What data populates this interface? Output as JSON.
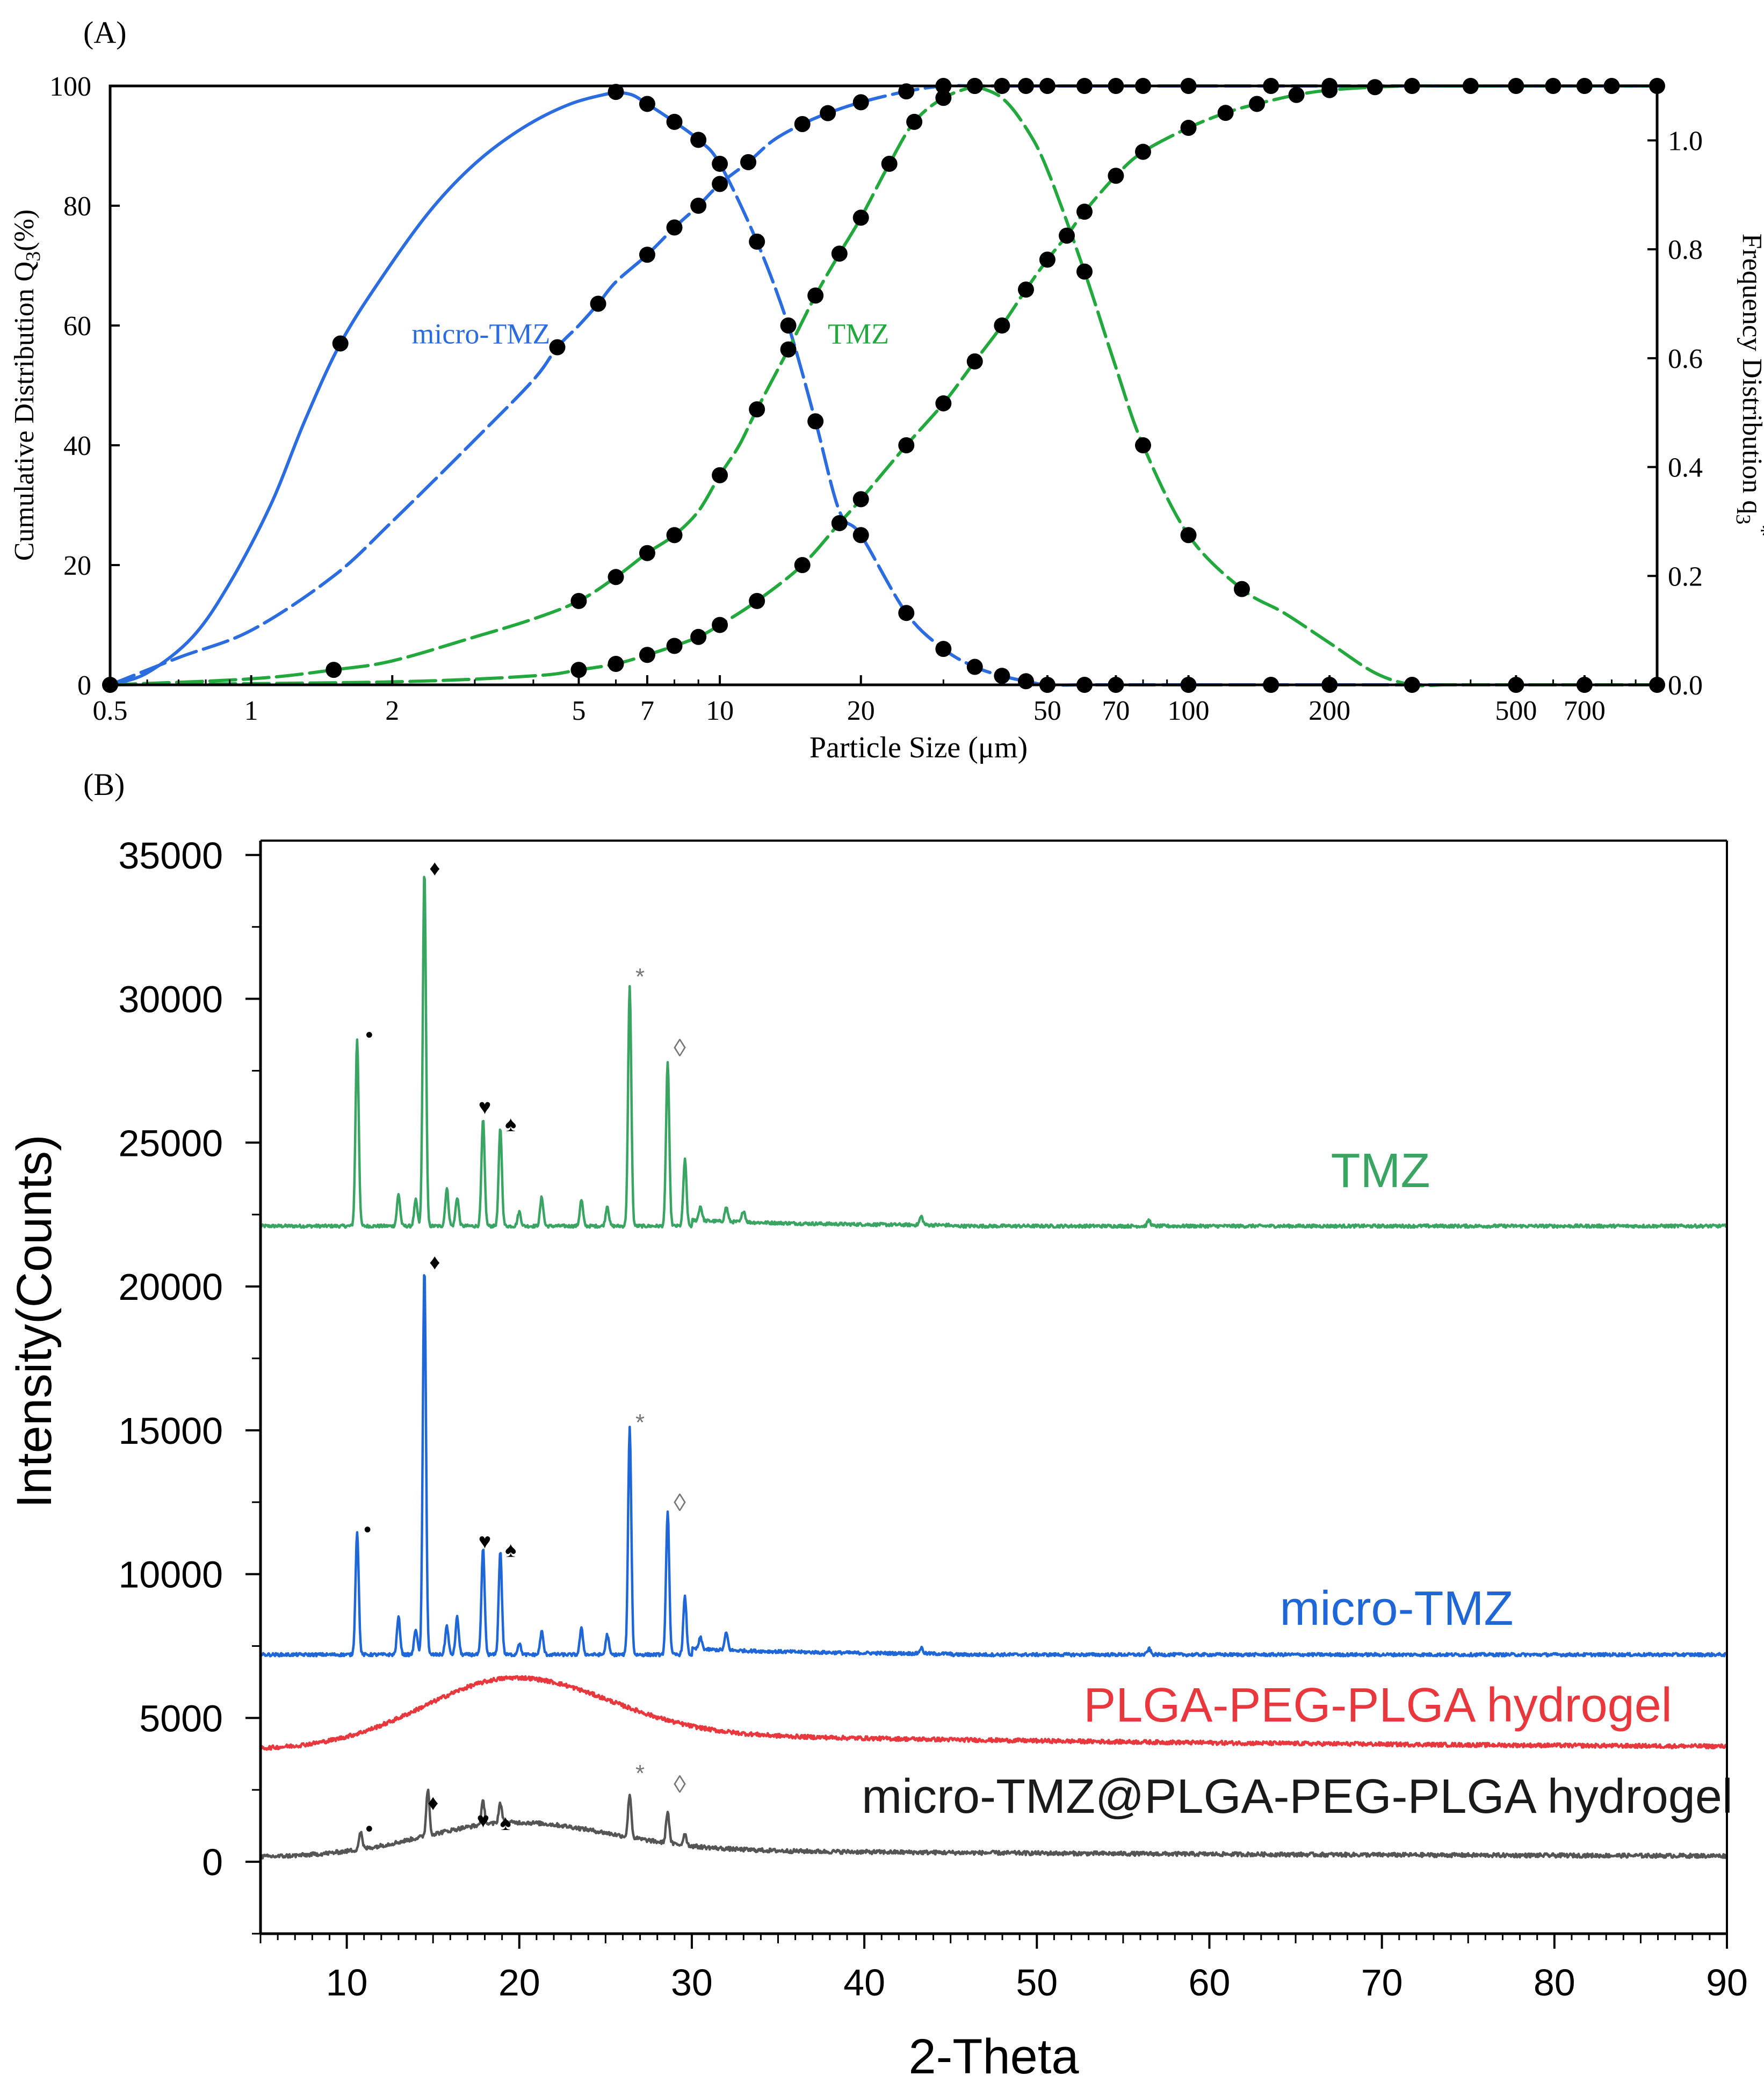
{
  "colors": {
    "blue": "#2b6de0",
    "green": "#22a83c",
    "xrd_green": "#3aa463",
    "xrd_blue": "#1f67d6",
    "red": "#e8383d",
    "gray": "#555555",
    "black": "#000000"
  },
  "chart_data": [
    {
      "panel": "(A)",
      "type": "line",
      "xscale": "log",
      "xlabel": "Particle Size (μm)",
      "ylabel_left": "Cumulative Distribution Q",
      "ylabel_left_sub": "3",
      "ylabel_left_suffix": "(%)",
      "ylabel_right": "Frequency Distribution q",
      "ylabel_right_sub": "3",
      "ylabel_right_sup": "*",
      "xlim": [
        0.5,
        1000
      ],
      "ylim_left": [
        0,
        100
      ],
      "ylim_right": [
        0,
        1.1
      ],
      "xticks": [
        0.5,
        1,
        2,
        5,
        7,
        10,
        20,
        50,
        70,
        100,
        200,
        500,
        700
      ],
      "xtick_labels": [
        "0.5",
        "1",
        "2",
        "5",
        "7",
        "10",
        "20",
        "50",
        "70",
        "100",
        "200",
        "500",
        "700"
      ],
      "yticks_left": [
        0,
        20,
        40,
        60,
        80,
        100
      ],
      "ytick_labels_left": [
        "0",
        "20",
        "40",
        "60",
        "80",
        "100"
      ],
      "yticks_right": [
        0.0,
        0.2,
        0.4,
        0.6,
        0.8,
        1.0
      ],
      "ytick_labels_right": [
        "0.0",
        "0.2",
        "0.4",
        "0.6",
        "0.8",
        "1.0"
      ],
      "annotations": [
        {
          "text": "micro-TMZ",
          "color": "blue",
          "x": 2.2,
          "y": 57
        },
        {
          "text": "TMZ",
          "color": "green",
          "x": 17,
          "y": 57
        }
      ],
      "series": [
        {
          "name": "micro-TMZ cumulative",
          "color": "blue",
          "axis": "left",
          "x": [
            0.5,
            0.6,
            0.75,
            0.9,
            1.1,
            1.3,
            1.55,
            1.9,
            2.4,
            3.0,
            3.8,
            4.8,
            6.0
          ],
          "y": [
            0,
            2,
            8,
            17,
            30,
            44,
            57,
            68,
            79,
            87,
            93,
            97,
            99
          ],
          "marked_x": [
            1.55
          ]
        },
        {
          "name": "micro-TMZ frequency",
          "color": "blue",
          "axis": "right",
          "x": [
            0.5,
            0.7,
            1.0,
            1.5,
            2.0,
            3.0,
            4.0,
            4.5,
            5.0,
            5.5,
            6.0,
            7.0,
            8.0,
            9.0,
            10.0,
            11.5,
            13.0,
            15.0,
            17.0,
            20.0,
            25.0,
            30.0,
            35.0,
            40.0,
            45.0,
            50.0,
            60.0,
            70.0,
            80.0,
            100.0,
            150.0,
            200.0,
            300.0,
            400.0,
            500.0,
            600.0,
            700.0,
            800.0,
            1000.0
          ],
          "y": [
            0,
            0.05,
            0.1,
            0.2,
            0.3,
            0.45,
            0.56,
            0.62,
            0.66,
            0.7,
            0.74,
            0.79,
            0.84,
            0.88,
            0.92,
            0.96,
            1.0,
            1.03,
            1.05,
            1.07,
            1.09,
            1.1,
            1.1,
            1.1,
            1.1,
            1.1,
            1.1,
            1.1,
            1.1,
            1.1,
            1.1,
            1.1,
            1.1,
            1.1,
            1.1,
            1.1,
            1.1,
            1.1,
            1.1
          ],
          "marked_x": [
            4.5,
            5.5,
            7.0,
            8.0,
            9.0,
            10.0,
            11.5,
            15.0,
            17.0,
            20.0,
            25.0,
            30.0,
            35.0,
            40.0,
            45.0,
            50.0,
            60.0,
            70.0,
            80.0,
            100.0,
            150.0,
            200.0,
            300.0,
            400.0,
            500.0,
            600.0,
            700.0,
            800.0,
            1000.0
          ]
        },
        {
          "name": "micro-TMZ frequency (right peak curve)",
          "color": "blue",
          "axis": "left",
          "x": [
            6.0,
            6.5,
            7.0,
            8.0,
            9.0,
            10.0,
            12.0,
            14.0,
            16.0,
            18.0,
            20.0,
            25.0,
            30.0,
            35.0,
            40.0,
            45.0,
            50.0,
            60.0,
            70.0,
            100.0,
            150.0,
            200.0,
            300.0,
            500.0,
            700.0,
            1000.0
          ],
          "y": [
            99,
            98.5,
            97,
            94,
            91,
            87,
            74,
            60,
            44,
            29,
            25,
            12,
            6,
            3,
            1.5,
            0.6,
            0,
            0,
            0,
            0,
            0,
            0,
            0,
            0,
            0,
            0
          ],
          "marked_x": [
            6.0,
            7.0,
            8.0,
            9.0,
            10.0,
            12.0,
            14.0,
            16.0,
            20.0,
            25.0,
            30.0,
            35.0,
            40.0,
            45.0,
            50.0,
            60.0,
            70.0,
            100.0,
            150.0,
            200.0,
            300.0,
            500.0,
            700.0,
            1000.0
          ]
        },
        {
          "name": "TMZ cumulative",
          "color": "green",
          "axis": "left",
          "x": [
            0.5,
            1.0,
            1.5,
            2.0,
            3.0,
            4.0,
            5.0,
            6.0,
            7.0,
            8.0,
            9.0,
            10.0,
            11.0,
            12.0,
            14.0,
            16.0,
            18.0,
            20.0,
            23.0,
            26.0,
            30.0,
            35.0
          ],
          "y": [
            0,
            1,
            2.5,
            4,
            8,
            11,
            14,
            18,
            22,
            25,
            29,
            35,
            40,
            46,
            56,
            65,
            72,
            78,
            87,
            94,
            98,
            100
          ],
          "marked_x": [
            1.5,
            5.0,
            6.0,
            7.0,
            8.0,
            10.0,
            12.0,
            14.0,
            16.0,
            18.0,
            20.0,
            23.0,
            26.0,
            30.0,
            35.0
          ]
        },
        {
          "name": "TMZ frequency",
          "color": "green",
          "axis": "left",
          "x": [
            0.5,
            2.0,
            4.0,
            5.0,
            6.0,
            7.0,
            8.0,
            9.0,
            10.0,
            12.0,
            15.0,
            18.0,
            20.0,
            25.0,
            30.0,
            35.0,
            40.0,
            45.0,
            50.0,
            55.0,
            60.0,
            70.0,
            80.0,
            100.0,
            120.0,
            140.0,
            170.0,
            200.0,
            250.0,
            300.0,
            350.0,
            400.0,
            500.0,
            600.0,
            700.0,
            800.0,
            1000.0
          ],
          "y": [
            0,
            0.5,
            1.5,
            2.5,
            3.5,
            5,
            6.5,
            8,
            10,
            14,
            20,
            27,
            31,
            40,
            47,
            54,
            60,
            66,
            71,
            75,
            79,
            85,
            89,
            93,
            95.5,
            97,
            98.5,
            99.3,
            99.8,
            100,
            100,
            100,
            100,
            100,
            100,
            100,
            100
          ],
          "marked_x": [
            5.0,
            6.0,
            7.0,
            8.0,
            9.0,
            10.0,
            12.0,
            15.0,
            18.0,
            20.0,
            25.0,
            30.0,
            35.0,
            40.0,
            45.0,
            50.0,
            55.0,
            60.0,
            70.0,
            80.0,
            100.0,
            120.0,
            140.0,
            170.0,
            200.0,
            250.0
          ]
        },
        {
          "name": "TMZ frequency peak",
          "color": "green",
          "axis": "left",
          "x": [
            35.0,
            40.0,
            45.0,
            50.0,
            60.0,
            70.0,
            80.0,
            100.0,
            130.0,
            160.0,
            200.0,
            250.0,
            300.0,
            350.0,
            400.0,
            500.0,
            700.0,
            1000.0
          ],
          "y": [
            100,
            98,
            93,
            86,
            69,
            53,
            40,
            25,
            16,
            12,
            7,
            2,
            0,
            0,
            0,
            0,
            0,
            0
          ],
          "marked_x": [
            60.0,
            80.0,
            100.0,
            130.0
          ]
        }
      ]
    },
    {
      "panel": "(B)",
      "type": "line",
      "xlabel": "2-Theta",
      "ylabel": "Intensity(Counts)",
      "xlim": [
        5,
        90
      ],
      "ylim": [
        -2500,
        35500
      ],
      "xticks": [
        10,
        20,
        30,
        40,
        50,
        60,
        70,
        80,
        90
      ],
      "xtick_labels": [
        "10",
        "20",
        "30",
        "40",
        "50",
        "60",
        "70",
        "80",
        "90"
      ],
      "yticks": [
        0,
        5000,
        10000,
        15000,
        20000,
        25000,
        30000,
        35000
      ],
      "ytick_labels": [
        "0",
        "5000",
        "10000",
        "15000",
        "20000",
        "25000",
        "30000",
        "35000"
      ],
      "series": [
        {
          "name": "TMZ",
          "color": "xrd_green",
          "baseline": 22100,
          "label": "TMZ",
          "peaks": [
            [
              10.6,
              6500
            ],
            [
              13.0,
              1100
            ],
            [
              14.0,
              900
            ],
            [
              14.5,
              12400
            ],
            [
              15.8,
              1300
            ],
            [
              16.4,
              1000
            ],
            [
              17.9,
              3700
            ],
            [
              18.9,
              3400
            ],
            [
              20.0,
              500
            ],
            [
              21.3,
              1000
            ],
            [
              23.6,
              900
            ],
            [
              25.1,
              700
            ],
            [
              26.4,
              8300
            ],
            [
              28.6,
              5700
            ],
            [
              29.6,
              2300
            ],
            [
              30.5,
              500
            ],
            [
              32.0,
              500
            ],
            [
              33.0,
              400
            ],
            [
              43.3,
              300
            ],
            [
              56.5,
              200
            ]
          ],
          "bump": 0
        },
        {
          "name": "micro-TMZ",
          "color": "xrd_blue",
          "baseline": 7200,
          "label": "micro-TMZ",
          "peaks": [
            [
              10.6,
              4300
            ],
            [
              13.0,
              1300
            ],
            [
              14.0,
              900
            ],
            [
              14.5,
              13500
            ],
            [
              15.8,
              1000
            ],
            [
              16.4,
              1300
            ],
            [
              17.9,
              3700
            ],
            [
              18.9,
              3600
            ],
            [
              20.0,
              400
            ],
            [
              21.3,
              800
            ],
            [
              23.6,
              900
            ],
            [
              25.1,
              700
            ],
            [
              26.4,
              7900
            ],
            [
              28.6,
              5000
            ],
            [
              29.6,
              2000
            ],
            [
              30.5,
              400
            ],
            [
              32.0,
              600
            ],
            [
              43.3,
              200
            ],
            [
              56.5,
              200
            ]
          ],
          "bump": 0
        },
        {
          "name": "PLGA-PEG-PLGA hydrogel",
          "color": "red",
          "baseline": 3900,
          "label": "PLGA-PEG-PLGA hydrogel",
          "peaks": [],
          "bump": 1850
        },
        {
          "name": "micro-TMZ@PLGA-PEG-PLGA hydrogel",
          "color": "gray",
          "baseline": 150,
          "label": "micro-TMZ@PLGA-PEG-PLGA hydrogel",
          "peaks": [
            [
              10.8,
              600
            ],
            [
              14.7,
              1600
            ],
            [
              17.9,
              800
            ],
            [
              18.9,
              700
            ],
            [
              26.4,
              1500
            ],
            [
              28.6,
              1100
            ],
            [
              29.6,
              400
            ]
          ],
          "bump": 900
        }
      ],
      "markers": [
        {
          "symbol": "•",
          "series": "TMZ",
          "x": 11.3,
          "y": 28500
        },
        {
          "symbol": "♦",
          "series": "TMZ",
          "x": 15.1,
          "y": 34300
        },
        {
          "symbol": "♥",
          "series": "TMZ",
          "x": 18.0,
          "y": 26000
        },
        {
          "symbol": "♠",
          "series": "TMZ",
          "x": 19.5,
          "y": 25400
        },
        {
          "symbol": "*",
          "series": "TMZ",
          "x": 27.0,
          "y": 30500
        },
        {
          "symbol": "◊",
          "series": "TMZ",
          "x": 29.3,
          "y": 28000
        },
        {
          "symbol": "•",
          "series": "micro-TMZ",
          "x": 11.2,
          "y": 11300
        },
        {
          "symbol": "♦",
          "series": "micro-TMZ",
          "x": 15.1,
          "y": 20600
        },
        {
          "symbol": "♥",
          "series": "micro-TMZ",
          "x": 18.0,
          "y": 10900
        },
        {
          "symbol": "♠",
          "series": "micro-TMZ",
          "x": 19.5,
          "y": 10600
        },
        {
          "symbol": "*",
          "series": "micro-TMZ",
          "x": 27.0,
          "y": 15000
        },
        {
          "symbol": "◊",
          "series": "micro-TMZ",
          "x": 29.3,
          "y": 12200
        },
        {
          "symbol": "•",
          "series": "micro-TMZ@PLGA-PEG-PLGA hydrogel",
          "x": 11.3,
          "y": 900
        },
        {
          "symbol": "♦",
          "series": "micro-TMZ@PLGA-PEG-PLGA hydrogel",
          "x": 15.0,
          "y": 1800
        },
        {
          "symbol": "♥",
          "series": "micro-TMZ@PLGA-PEG-PLGA hydrogel",
          "x": 17.9,
          "y": 1200
        },
        {
          "symbol": "♠",
          "series": "micro-TMZ@PLGA-PEG-PLGA hydrogel",
          "x": 19.2,
          "y": 1100
        },
        {
          "symbol": "*",
          "series": "micro-TMZ@PLGA-PEG-PLGA hydrogel",
          "x": 27.0,
          "y": 2800
        },
        {
          "symbol": "◊",
          "series": "micro-TMZ@PLGA-PEG-PLGA hydrogel",
          "x": 29.3,
          "y": 2400
        }
      ]
    }
  ]
}
